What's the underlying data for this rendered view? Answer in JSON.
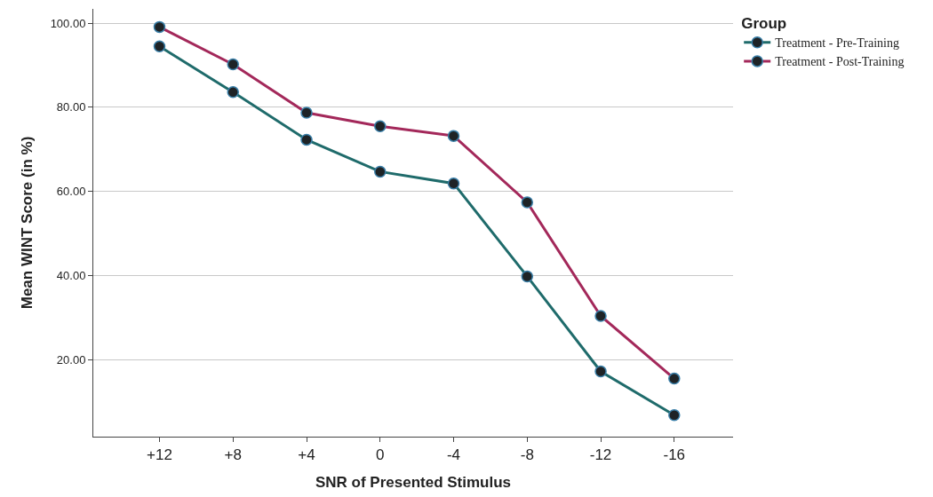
{
  "chart_data": {
    "type": "line",
    "xlabel": "SNR of Presented Stimulus",
    "ylabel": "Mean WINT Score (in %)",
    "legend_title": "Group",
    "categories": [
      "+12",
      "+8",
      "+4",
      "0",
      "-4",
      "-8",
      "-12",
      "-16"
    ],
    "series": [
      {
        "name": "Treatment - Pre-Training",
        "color": "#1f6b6b",
        "values": [
          94.5,
          83.6,
          72.3,
          64.7,
          61.9,
          39.8,
          17.2,
          6.8
        ]
      },
      {
        "name": "Treatment - Post-Training",
        "color": "#a3285a",
        "values": [
          99.1,
          90.2,
          78.7,
          75.5,
          73.2,
          57.4,
          30.4,
          15.5
        ]
      }
    ],
    "ylim": [
      1.7,
      103.4
    ],
    "yticks": [
      {
        "value": 20,
        "label": "20.00"
      },
      {
        "value": 40,
        "label": "40.00"
      },
      {
        "value": 60,
        "label": "60.00"
      },
      {
        "value": 80,
        "label": "80.00"
      },
      {
        "value": 100,
        "label": "100.00"
      }
    ],
    "grid": "y",
    "legend": "top right",
    "marker": "circle",
    "line_style": "solid"
  }
}
